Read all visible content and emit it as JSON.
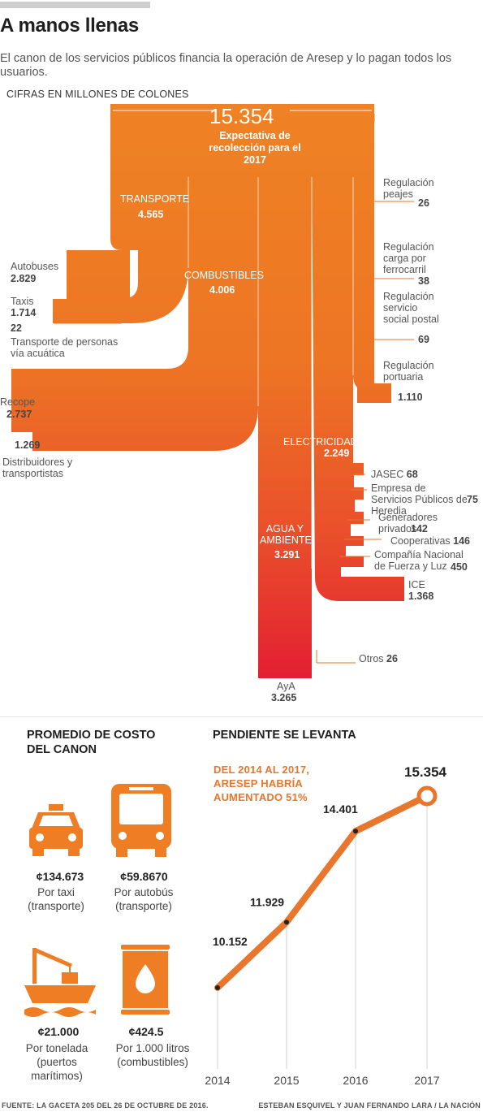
{
  "header": {
    "title": "A manos llenas",
    "subtitle": "El canon de los servicios públicos financia la operación de Aresep y lo pagan todos los usuarios.",
    "units": "CIFRAS EN MILLONES DE COLONES"
  },
  "colors": {
    "orange": "#ee7d24",
    "red": "#e31f32",
    "line": "#e8762c",
    "text": "#444444"
  },
  "chart_data": [
    {
      "type": "sankey",
      "total": {
        "value": "15.354",
        "label": "Expectativa de recolección para el 2017"
      },
      "sectors": [
        {
          "label": "TRANSPORTE",
          "value": "4.565"
        },
        {
          "label": "COMBUSTIBLES",
          "value": "4.006"
        },
        {
          "label": "ELECTRICIDAD",
          "value": "2.249"
        },
        {
          "label": "AGUA Y AMBIENTE",
          "value": "3.291"
        }
      ],
      "transporte": [
        {
          "label": "Autobuses",
          "value": "2.829"
        },
        {
          "label": "Taxis",
          "value": "1.714"
        },
        {
          "label": "Transporte de personas vía acuática",
          "value": "22"
        },
        {
          "label": "Regulación peajes",
          "value": "26"
        },
        {
          "label": "Regulación carga por ferrocarril",
          "value": "38"
        },
        {
          "label": "Regulación servicio social postal",
          "value": "69"
        },
        {
          "label": "Regulación portuaria",
          "value": "1.110"
        }
      ],
      "combustibles": [
        {
          "label": "Recope",
          "value": "2.737"
        },
        {
          "label": "Distribuidores y transportistas",
          "value": "1.269"
        }
      ],
      "electricidad": [
        {
          "label": "JASEC",
          "value": "68"
        },
        {
          "label": "Empresa de Servicios Públicos de Heredia",
          "value": "75"
        },
        {
          "label": "Generadores privados",
          "value": "142"
        },
        {
          "label": "Cooperativas",
          "value": "146"
        },
        {
          "label": "Compañía Nacional de Fuerza y Luz",
          "value": "450"
        },
        {
          "label": "ICE",
          "value": "1.368"
        }
      ],
      "agua": [
        {
          "label": "AyA",
          "value": "3.265"
        },
        {
          "label": "Otros",
          "value": "26"
        }
      ]
    },
    {
      "type": "line",
      "title": "PENDIENTE SE LEVANTA",
      "annotation": "DEL 2014 AL 2017, ARESEP HABRÍA AUMENTADO 51%",
      "x": [
        "2014",
        "2015",
        "2016",
        "2017"
      ],
      "values": [
        10152,
        11929,
        14401,
        15354
      ],
      "value_labels": [
        "10.152",
        "11.929",
        "14.401",
        "15.354"
      ],
      "ylim": [
        9000,
        16000
      ]
    }
  ],
  "costs": {
    "title": "PROMEDIO DE COSTO DEL CANON",
    "items": [
      {
        "icon": "taxi-icon",
        "price": "¢134.673",
        "desc": "Por taxi (transporte)"
      },
      {
        "icon": "bus-icon",
        "price": "¢59.8670",
        "desc": "Por autobús (transporte)"
      },
      {
        "icon": "ship-icon",
        "price": "¢21.000",
        "desc": "Por tonelada (puertos marítimos)"
      },
      {
        "icon": "fuel-barrel-icon",
        "price": "¢424.5",
        "desc": "Por 1.000 litros (combustibles)"
      }
    ]
  },
  "footer": {
    "source": "FUENTE: LA GACETA 205 DEL 26 DE OCTUBRE DE 2016.",
    "credits": "ESTEBAN ESQUIVEL Y JUAN FERNANDO LARA / LA NACIÓN"
  }
}
